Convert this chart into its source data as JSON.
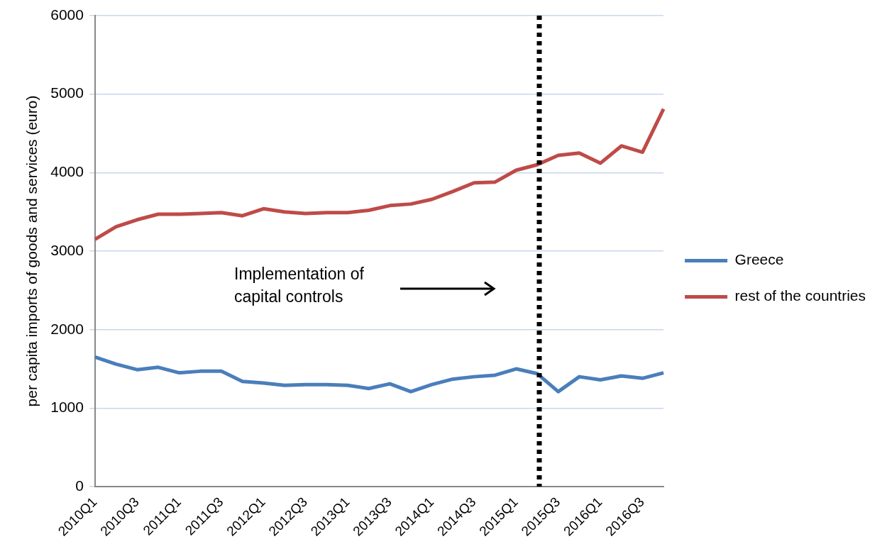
{
  "chart_data": {
    "type": "line",
    "ylabel": "per capita imports of goods and services (euro)",
    "categories": [
      "2010Q1",
      null,
      "2010Q3",
      null,
      "2011Q1",
      null,
      "2011Q3",
      null,
      "2012Q1",
      null,
      "2012Q3",
      null,
      "2013Q1",
      null,
      "2013Q3",
      null,
      "2014Q1",
      null,
      "2014Q3",
      null,
      "2015Q1",
      null,
      "2015Q3",
      null,
      "2016Q1",
      null,
      "2016Q3",
      null
    ],
    "series": [
      {
        "name": "Greece",
        "color": "#4a7ebb",
        "values": [
          1650,
          1560,
          1490,
          1520,
          1450,
          1470,
          1470,
          1340,
          1320,
          1290,
          1300,
          1300,
          1290,
          1250,
          1310,
          1210,
          1300,
          1370,
          1400,
          1420,
          1500,
          1440,
          1210,
          1400,
          1360,
          1410,
          1380,
          1450
        ]
      },
      {
        "name": "rest of the countries",
        "color": "#be4b48",
        "values": [
          3150,
          3310,
          3400,
          3470,
          3470,
          3480,
          3490,
          3450,
          3540,
          3500,
          3480,
          3490,
          3490,
          3520,
          3580,
          3600,
          3660,
          3760,
          3870,
          3880,
          4030,
          4100,
          4220,
          4250,
          4120,
          4340,
          4260,
          4810
        ]
      }
    ],
    "ylim": [
      0,
      6000
    ],
    "yticks": [
      0,
      1000,
      2000,
      3000,
      4000,
      5000,
      6000
    ],
    "grid": "y",
    "legend": "right",
    "marker": "none",
    "line_style": "solid",
    "annotations": [
      "Implementation of\ncapital controls"
    ]
  }
}
